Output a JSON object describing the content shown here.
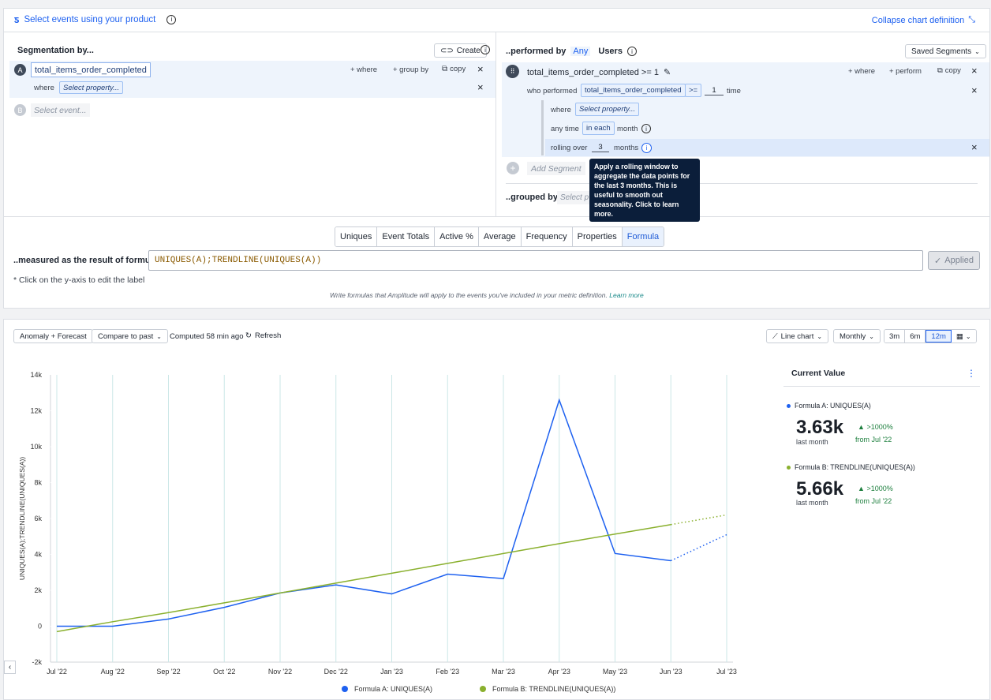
{
  "header": {
    "select_events": "Select events using your product",
    "collapse": "Collapse chart definition"
  },
  "segmentation": {
    "title": "Segmentation by...",
    "create": "Create",
    "event_a_letter": "A",
    "event_a": "total_items_order_completed",
    "where": "+ where",
    "group_by": "+ group by",
    "copy": "copy",
    "where_label": "where",
    "select_property": "Select property...",
    "event_b_letter": "B",
    "select_event": "Select event..."
  },
  "performed": {
    "title": "..performed by",
    "any": "Any",
    "users": "Users",
    "saved_segments": "Saved Segments",
    "segment_name": "total_items_order_completed >= 1",
    "where": "+ where",
    "perform": "+ perform",
    "copy": "copy",
    "who_performed": "who performed",
    "event_pill": "total_items_order_completed",
    "operator": ">=",
    "count": "1",
    "time": "time",
    "where_label": "where",
    "select_property": "Select property...",
    "any_time": "any time",
    "in_each": "in each",
    "month": "month",
    "rolling_over": "rolling over",
    "rolling_value": "3",
    "months": "months",
    "add_segment": "Add Segment",
    "grouped_by": "..grouped by",
    "select_placeholder": "Select p",
    "tooltip": "Apply a rolling window to aggregate the data points for the last 3 months. This is useful to smooth out seasonality. Click to learn more."
  },
  "metric_tabs": [
    "Uniques",
    "Event Totals",
    "Active %",
    "Average",
    "Frequency",
    "Properties",
    "Formula"
  ],
  "formula": {
    "label": "..measured as the result of formula",
    "value": "UNIQUES(A);TRENDLINE(UNIQUES(A))",
    "applied": "Applied",
    "note": "* Click on the y-axis to edit the label",
    "help": "Write formulas that Amplitude will apply to the events you've included in your metric definition.",
    "learn_more": "Learn more"
  },
  "chart_toolbar": {
    "anomaly": "Anomaly + Forecast",
    "compare": "Compare to past",
    "computed": "Computed 58 min ago",
    "refresh": "Refresh",
    "chart_type": "Line chart",
    "interval": "Monthly",
    "ranges": [
      "3m",
      "6m",
      "12m"
    ],
    "selected_range": "12m"
  },
  "current_value": {
    "title": "Current Value",
    "items": [
      {
        "label": "Formula A: UNIQUES(A)",
        "value": "3.63k",
        "sub": "last month",
        "change": ">1000%",
        "from": "from Jul '22",
        "color": "#1e61f0"
      },
      {
        "label": "Formula B: TRENDLINE(UNIQUES(A))",
        "value": "5.66k",
        "sub": "last month",
        "change": ">1000%",
        "from": "from Jul '22",
        "color": "#8ab02e"
      }
    ]
  },
  "chart_data": {
    "type": "line",
    "ylabel": "UNIQUES(A);TRENDLINE(UNIQUES(A))",
    "x": [
      "Jul '22",
      "Aug '22",
      "Sep '22",
      "Oct '22",
      "Nov '22",
      "Dec '22",
      "Jan '23",
      "Feb '23",
      "Mar '23",
      "Apr '23",
      "May '23",
      "Jun '23",
      "Jul '23"
    ],
    "y_ticks": [
      "14k",
      "12k",
      "10k",
      "8k",
      "6k",
      "4k",
      "2k",
      "0",
      "-2k"
    ],
    "ylim": [
      -2000,
      14000
    ],
    "series": [
      {
        "name": "Formula A: UNIQUES(A)",
        "color": "#1e61f0",
        "values": [
          0,
          0,
          400,
          1050,
          1850,
          2300,
          1800,
          2900,
          2650,
          12600,
          4050,
          3650,
          5100
        ],
        "dotted_from_index": 11
      },
      {
        "name": "Formula B: TRENDLINE(UNIQUES(A))",
        "color": "#8ab02e",
        "values": [
          -300,
          250,
          760,
          1300,
          1850,
          2400,
          2950,
          3500,
          4050,
          4600,
          5130,
          5660,
          6200
        ],
        "dotted_from_index": 11
      }
    ],
    "grid": true,
    "legend_position": "bottom"
  }
}
